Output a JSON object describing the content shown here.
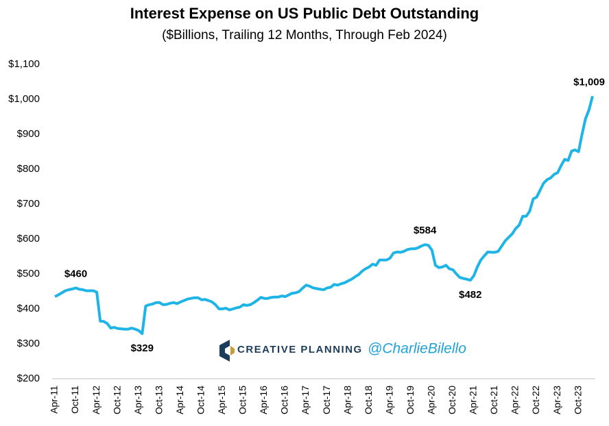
{
  "chart_data": {
    "type": "line",
    "title": "Interest Expense on US Public Debt Outstanding",
    "subtitle": "($Billions, Trailing 12 Months, Through Feb 2024)",
    "watermark": [
      "CREATIVE PLANNING",
      "@CharlieBilello"
    ],
    "categories": [
      "Apr-11",
      null,
      null,
      null,
      null,
      null,
      "Oct-11",
      null,
      null,
      null,
      null,
      null,
      "Apr-12",
      null,
      null,
      null,
      null,
      null,
      "Oct-12",
      null,
      null,
      null,
      null,
      null,
      "Apr-13",
      null,
      null,
      null,
      null,
      null,
      "Oct-13",
      null,
      null,
      null,
      null,
      null,
      "Apr-14",
      null,
      null,
      null,
      null,
      null,
      "Oct-14",
      null,
      null,
      null,
      null,
      null,
      "Apr-15",
      null,
      null,
      null,
      null,
      null,
      "Oct-15",
      null,
      null,
      null,
      null,
      null,
      "Apr-16",
      null,
      null,
      null,
      null,
      null,
      "Oct-16",
      null,
      null,
      null,
      null,
      null,
      "Apr-17",
      null,
      null,
      null,
      null,
      null,
      "Oct-17",
      null,
      null,
      null,
      null,
      null,
      "Apr-18",
      null,
      null,
      null,
      null,
      null,
      "Oct-18",
      null,
      null,
      null,
      null,
      null,
      "Apr-19",
      null,
      null,
      null,
      null,
      null,
      "Oct-19",
      null,
      null,
      null,
      null,
      null,
      "Apr-20",
      null,
      null,
      null,
      null,
      null,
      "Oct-20",
      null,
      null,
      null,
      null,
      null,
      "Apr-21",
      null,
      null,
      null,
      null,
      null,
      "Oct-21",
      null,
      null,
      null,
      null,
      null,
      "Apr-22",
      null,
      null,
      null,
      null,
      null,
      "Oct-22",
      null,
      null,
      null,
      null,
      null,
      "Apr-23",
      null,
      null,
      null,
      null,
      null,
      "Oct-23",
      null,
      null,
      null,
      null
    ],
    "series": [
      {
        "name": "Interest Expense",
        "color": "#1fb4e6",
        "values": [
          435,
          440,
          446,
          452,
          455,
          457,
          460,
          456,
          455,
          452,
          452,
          452,
          448,
          365,
          364,
          358,
          345,
          347,
          344,
          343,
          342,
          342,
          345,
          342,
          338,
          329,
          408,
          412,
          414,
          418,
          418,
          412,
          413,
          416,
          418,
          415,
          420,
          424,
          428,
          430,
          432,
          432,
          426,
          427,
          424,
          420,
          412,
          400,
          400,
          402,
          397,
          400,
          403,
          405,
          412,
          410,
          412,
          418,
          425,
          433,
          430,
          430,
          433,
          434,
          434,
          437,
          435,
          440,
          445,
          446,
          450,
          460,
          468,
          465,
          460,
          458,
          456,
          455,
          460,
          462,
          470,
          468,
          472,
          475,
          480,
          485,
          492,
          498,
          508,
          515,
          520,
          528,
          525,
          540,
          540,
          540,
          545,
          560,
          563,
          562,
          565,
          570,
          572,
          572,
          575,
          580,
          584,
          582,
          568,
          525,
          518,
          520,
          525,
          515,
          512,
          500,
          490,
          487,
          485,
          482,
          495,
          520,
          540,
          552,
          563,
          562,
          562,
          565,
          580,
          595,
          605,
          615,
          630,
          640,
          665,
          665,
          680,
          715,
          720,
          740,
          760,
          770,
          775,
          785,
          790,
          810,
          828,
          825,
          852,
          855,
          850,
          900,
          945,
          970,
          1009
        ],
        "value_labels": [
          null,
          null,
          null,
          null,
          null,
          null,
          "$460",
          null,
          null,
          null,
          null,
          null,
          null,
          null,
          null,
          null,
          null,
          null,
          null,
          null,
          null,
          null,
          null,
          null,
          null,
          "$329",
          null,
          null,
          null,
          null,
          null,
          null,
          null,
          null,
          null,
          null,
          null,
          null,
          null,
          null,
          null,
          null,
          null,
          null,
          null,
          null,
          null,
          null,
          null,
          null,
          null,
          null,
          null,
          null,
          null,
          null,
          null,
          null,
          null,
          null,
          null,
          null,
          null,
          null,
          null,
          null,
          null,
          null,
          null,
          null,
          null,
          null,
          null,
          null,
          null,
          null,
          null,
          null,
          null,
          null,
          null,
          null,
          null,
          null,
          null,
          null,
          null,
          null,
          null,
          null,
          null,
          null,
          null,
          null,
          null,
          null,
          null,
          null,
          null,
          null,
          null,
          null,
          null,
          null,
          null,
          null,
          "$584",
          null,
          null,
          null,
          null,
          null,
          null,
          null,
          null,
          null,
          null,
          null,
          null,
          "$482",
          null,
          null,
          null,
          null,
          null,
          null,
          null,
          null,
          null,
          null,
          null,
          null,
          null,
          null,
          null,
          null,
          null,
          null,
          null,
          null,
          null,
          null,
          null,
          null,
          null,
          null,
          null,
          null,
          null,
          null,
          null,
          null,
          null,
          null,
          "$1,009"
        ]
      }
    ],
    "ylim": [
      200,
      1100
    ],
    "yticks": [
      {
        "value": 200,
        "label": "$200"
      },
      {
        "value": 300,
        "label": "$300"
      },
      {
        "value": 400,
        "label": "$400"
      },
      {
        "value": 500,
        "label": "$500"
      },
      {
        "value": 600,
        "label": "$600"
      },
      {
        "value": 700,
        "label": "$700"
      },
      {
        "value": 800,
        "label": "$800"
      },
      {
        "value": 900,
        "label": "$900"
      },
      {
        "value": 1000,
        "label": "$1,000"
      },
      {
        "value": 1100,
        "label": "$1,100"
      }
    ],
    "grid": false
  }
}
